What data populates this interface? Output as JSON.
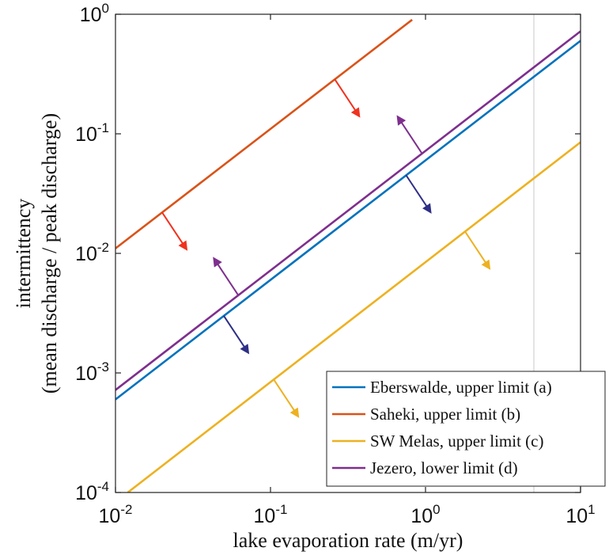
{
  "chart_data": {
    "type": "line",
    "xlabel": "lake evaporation rate (m/yr)",
    "ylabel_line1": "intermittency",
    "ylabel_line2": "(mean discharge / peak discharge)",
    "x_scale": "log",
    "y_scale": "log",
    "xlim": [
      0.01,
      10
    ],
    "ylim": [
      0.0001,
      1
    ],
    "x_ticks": [
      {
        "value": 0.01,
        "base": "10",
        "exp": "-2"
      },
      {
        "value": 0.1,
        "base": "10",
        "exp": "-1"
      },
      {
        "value": 1,
        "base": "10",
        "exp": "0"
      },
      {
        "value": 10,
        "base": "10",
        "exp": "1"
      }
    ],
    "y_ticks": [
      {
        "value": 0.0001,
        "base": "10",
        "exp": "-4"
      },
      {
        "value": 0.001,
        "base": "10",
        "exp": "-3"
      },
      {
        "value": 0.01,
        "base": "10",
        "exp": "-2"
      },
      {
        "value": 0.1,
        "base": "10",
        "exp": "-1"
      },
      {
        "value": 1,
        "base": "10",
        "exp": "0"
      }
    ],
    "grid": false,
    "vertical_reference_line": {
      "x": 5,
      "color": "#c8c8c8"
    },
    "legend_position": "bottom-right",
    "series": [
      {
        "name": "Eberswalde, upper limit (a)",
        "color": "#0072BD",
        "x": [
          0.01,
          10
        ],
        "y": [
          0.0006,
          0.6
        ],
        "arrows": [
          {
            "x": 0.05,
            "direction": "down"
          },
          {
            "x": 0.75,
            "direction": "down"
          }
        ],
        "arrow_color": "#2E2F86"
      },
      {
        "name": "Saheki, upper limit (b)",
        "color": "#D95319",
        "x": [
          0.01,
          0.82
        ],
        "y": [
          0.011,
          0.9
        ],
        "arrows": [
          {
            "x": 0.02,
            "direction": "down"
          },
          {
            "x": 0.26,
            "direction": "down"
          }
        ],
        "arrow_color": "#F0321E"
      },
      {
        "name": "SW Melas, upper limit (c)",
        "color": "#EDB120",
        "x": [
          0.012,
          10
        ],
        "y": [
          0.0001,
          0.085
        ],
        "arrows": [
          {
            "x": 0.105,
            "direction": "down"
          },
          {
            "x": 1.8,
            "direction": "down"
          }
        ],
        "arrow_color": "#EDB120"
      },
      {
        "name": "Jezero, lower limit (d)",
        "color": "#7E2F8E",
        "x": [
          0.01,
          10
        ],
        "y": [
          0.00072,
          0.72
        ],
        "arrows": [
          {
            "x": 0.062,
            "direction": "up"
          },
          {
            "x": 0.95,
            "direction": "up"
          }
        ],
        "arrow_color": "#7E2F8E"
      }
    ]
  }
}
